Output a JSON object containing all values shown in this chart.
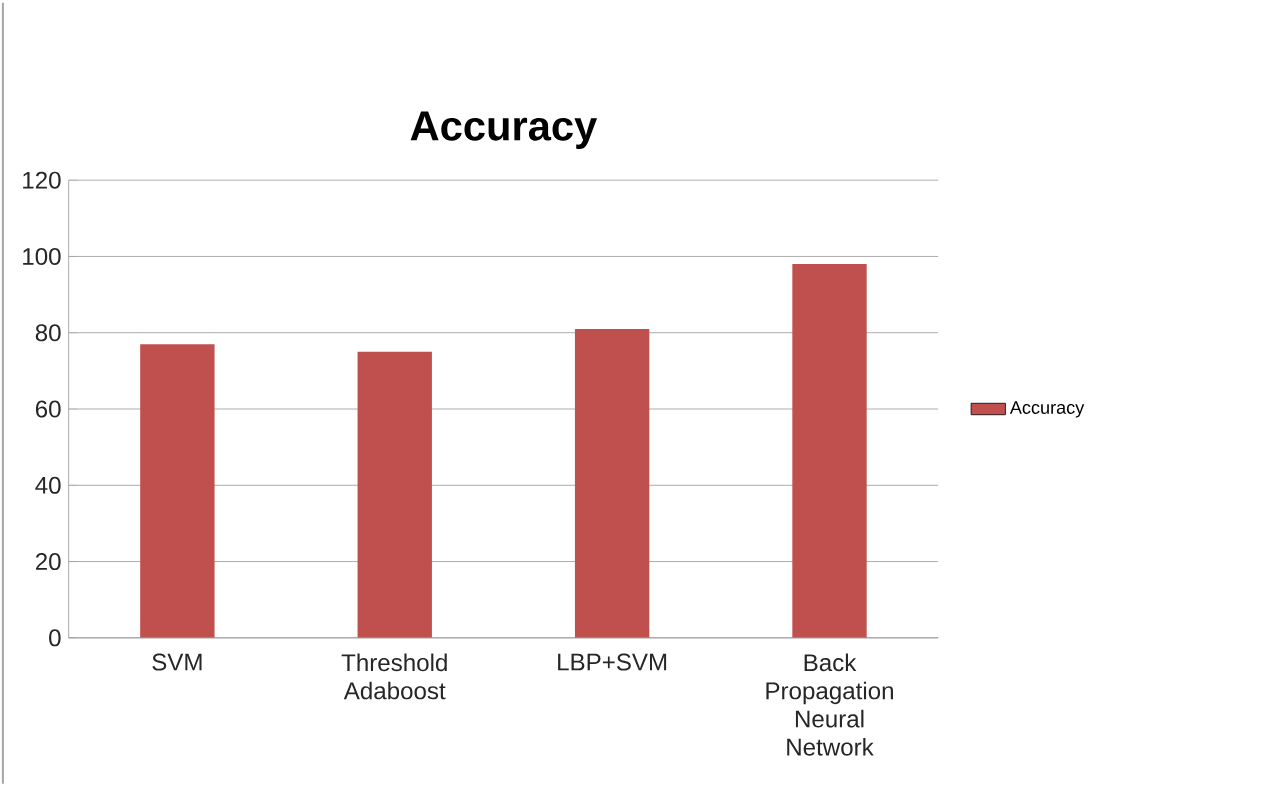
{
  "chart_data": {
    "type": "bar",
    "title": "Accuracy",
    "categories": [
      "SVM",
      "Threshold Adaboost",
      "LBP+SVM",
      "Back Propagation Neural Network"
    ],
    "series": [
      {
        "name": "Accuracy",
        "color": "#c0504d",
        "values": [
          77,
          75,
          81,
          98
        ]
      }
    ],
    "ylim": [
      0,
      120
    ],
    "yticks": [
      0,
      20,
      40,
      60,
      80,
      100,
      120
    ],
    "grid": "y",
    "legend": "right"
  }
}
